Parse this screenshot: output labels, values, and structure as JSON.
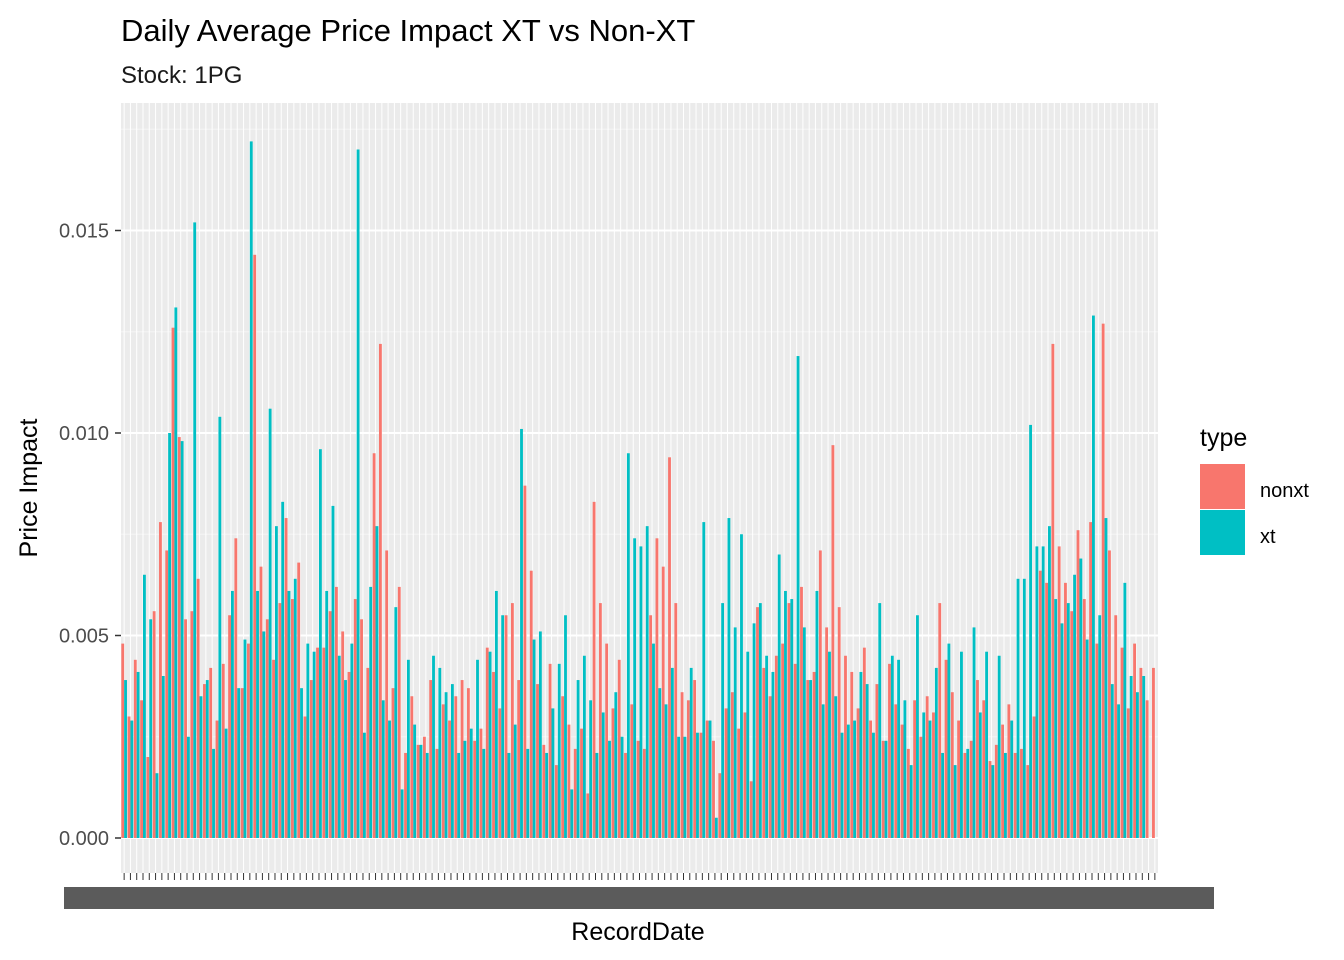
{
  "chart_data": {
    "type": "bar",
    "title": "Daily Average Price Impact XT vs Non-XT",
    "subtitle": "Stock: 1PG",
    "xlabel": "RecordDate",
    "ylabel": "Price Impact",
    "ylim": [
      0,
      0.018
    ],
    "yticks": [
      0.0,
      0.005,
      0.01,
      0.015
    ],
    "ytick_labels": [
      "0.000",
      "0.005",
      "0.010",
      "0.015"
    ],
    "grid": true,
    "legend": {
      "title": "type",
      "position": "right"
    },
    "colors": {
      "nonxt": "#F8766D",
      "xt": "#00BFC4",
      "panel": "#EBEBEB",
      "grid_major": "#FFFFFF"
    },
    "series": [
      {
        "name": "nonxt",
        "values": [
          0.0048,
          0.003,
          0.0044,
          0.0034,
          0.002,
          0.0056,
          0.0078,
          0.0071,
          0.0126,
          0.0099,
          0.0054,
          0.0056,
          0.0064,
          0.0038,
          0.0042,
          0.0029,
          0.0043,
          0.0055,
          0.0074,
          0.0037,
          0.0048,
          0.0144,
          0.0067,
          0.0054,
          0.0044,
          0.0058,
          0.0079,
          0.0059,
          0.0068,
          0.003,
          0.0039,
          0.0047,
          0.0047,
          0.0056,
          0.0062,
          0.0051,
          0.0041,
          0.0059,
          0.0054,
          0.0042,
          0.0095,
          0.0122,
          0.0071,
          0.0037,
          0.0062,
          0.0021,
          0.0035,
          0.0023,
          0.0025,
          0.0039,
          0.0022,
          0.0033,
          0.0029,
          0.0035,
          0.0039,
          0.0037,
          0.0024,
          0.0027,
          0.0047,
          0.0041,
          0.0032,
          0.0055,
          0.0058,
          0.0039,
          0.0087,
          0.0066,
          0.0038,
          0.0023,
          0.0043,
          0.0018,
          0.0035,
          0.0028,
          0.0022,
          0.0027,
          0.0011,
          0.0083,
          0.0058,
          0.0048,
          0.0032,
          0.0044,
          0.0021,
          0.0033,
          0.0024,
          0.0022,
          0.0055,
          0.0074,
          0.0067,
          0.0094,
          0.0058,
          0.0036,
          0.0034,
          0.0039,
          0.0026,
          0.0029,
          0.0024,
          0.0016,
          0.0032,
          0.0036,
          0.0027,
          0.0031,
          0.0014,
          0.0057,
          0.0042,
          0.0035,
          0.0045,
          0.0048,
          0.0058,
          0.0043,
          0.0062,
          0.0039,
          0.0041,
          0.0071,
          0.0052,
          0.0097,
          0.0057,
          0.0045,
          0.0041,
          0.0032,
          0.0047,
          0.0029,
          0.0038,
          0.0024,
          0.0043,
          0.0033,
          0.0028,
          0.0022,
          0.0034,
          0.0025,
          0.0035,
          0.0031,
          0.0058,
          0.0044,
          0.0036,
          0.0029,
          0.0021,
          0.0024,
          0.0039,
          0.0034,
          0.0019,
          0.0023,
          0.0028,
          0.0033,
          0.0021,
          0.0022,
          0.0018,
          0.003,
          0.0066,
          0.0063,
          0.0122,
          0.0072,
          0.0063,
          0.0056,
          0.0076,
          0.0059,
          0.0078,
          0.0048,
          0.0127,
          0.0071,
          0.0055,
          0.0047,
          0.0032,
          0.0048,
          0.0042,
          0.0034,
          0.0042
        ]
      },
      {
        "name": "xt",
        "values": [
          0.0039,
          0.0029,
          0.0041,
          0.0065,
          0.0054,
          0.0016,
          0.004,
          0.01,
          0.0131,
          0.0098,
          0.0025,
          0.0152,
          0.0035,
          0.0039,
          0.0022,
          0.0104,
          0.0027,
          0.0061,
          0.0037,
          0.0049,
          0.0172,
          0.0061,
          0.0051,
          0.0106,
          0.0077,
          0.0083,
          0.0061,
          0.0064,
          0.0037,
          0.0048,
          0.0046,
          0.0096,
          0.0061,
          0.0082,
          0.0045,
          0.0039,
          0.0048,
          0.017,
          0.0026,
          0.0062,
          0.0077,
          0.0034,
          0.0029,
          0.0057,
          0.0012,
          0.0044,
          0.0028,
          0.0023,
          0.0021,
          0.0045,
          0.0042,
          0.0036,
          0.0038,
          0.0021,
          0.0024,
          0.0027,
          0.0044,
          0.0022,
          0.0046,
          0.0061,
          0.0055,
          0.0021,
          0.0028,
          0.0101,
          0.0022,
          0.0049,
          0.0051,
          0.0021,
          0.0032,
          0.0043,
          0.0055,
          0.0012,
          0.0039,
          0.0045,
          0.0034,
          0.0021,
          0.0031,
          0.0024,
          0.0036,
          0.0025,
          0.0095,
          0.0074,
          0.0072,
          0.0077,
          0.0048,
          0.0037,
          0.0033,
          0.0042,
          0.0025,
          0.0025,
          0.0042,
          0.0026,
          0.0078,
          0.0029,
          0.0005,
          0.0058,
          0.0079,
          0.0052,
          0.0075,
          0.0046,
          0.0053,
          0.0058,
          0.0045,
          0.0041,
          0.007,
          0.0061,
          0.0059,
          0.0119,
          0.0052,
          0.0039,
          0.0061,
          0.0033,
          0.0046,
          0.0035,
          0.0026,
          0.0028,
          0.0029,
          0.0041,
          0.0038,
          0.0026,
          0.0058,
          0.0024,
          0.0045,
          0.0044,
          0.0034,
          0.0018,
          0.0055,
          0.0031,
          0.0029,
          0.0042,
          0.0021,
          0.0048,
          0.0018,
          0.0046,
          0.0022,
          0.0052,
          0.0031,
          0.0046,
          0.0018,
          0.0045,
          0.0021,
          0.0029,
          0.0064,
          0.0064,
          0.0102,
          0.0072,
          0.0072,
          0.0077,
          0.0059,
          0.0053,
          0.0058,
          0.0065,
          0.0069,
          0.0049,
          0.0129,
          0.0055,
          0.0079,
          0.0038,
          0.0033,
          0.0063,
          0.004,
          0.0036,
          0.004
        ]
      }
    ],
    "x_tick_labels_note": "category tick labels are dense and overlapping (illegible)"
  }
}
